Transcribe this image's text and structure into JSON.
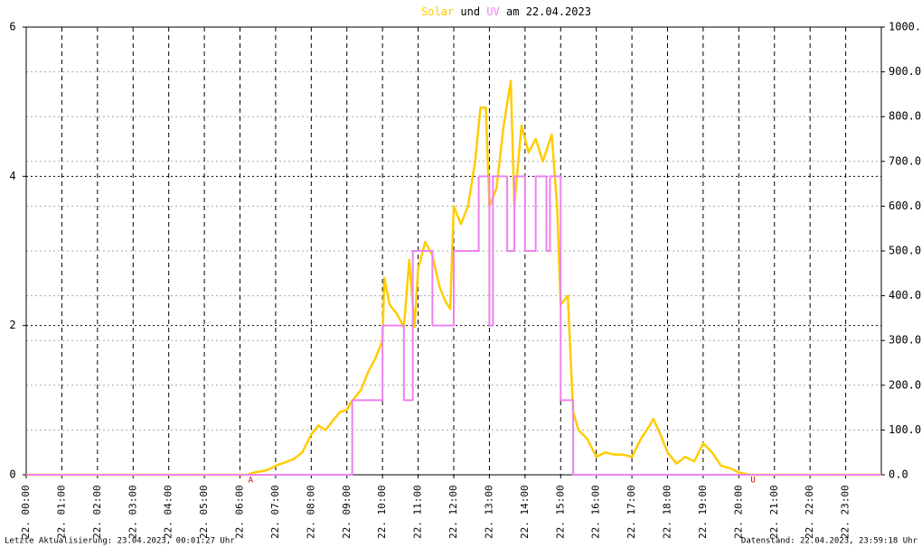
{
  "chart_data": {
    "type": "line",
    "title_join": "und",
    "title_suffix": "am 22.04.2023",
    "xlim": [
      0,
      24
    ],
    "xticks": [
      {
        "value": 0,
        "label": "22. 00:00"
      },
      {
        "value": 1,
        "label": "22. 01:00"
      },
      {
        "value": 2,
        "label": "22. 02:00"
      },
      {
        "value": 3,
        "label": "22. 03:00"
      },
      {
        "value": 4,
        "label": "22. 04:00"
      },
      {
        "value": 5,
        "label": "22. 05:00"
      },
      {
        "value": 6,
        "label": "22. 06:00"
      },
      {
        "value": 7,
        "label": "22. 07:00"
      },
      {
        "value": 8,
        "label": "22. 08:00"
      },
      {
        "value": 9,
        "label": "22. 09:00"
      },
      {
        "value": 10,
        "label": "22. 10:00"
      },
      {
        "value": 11,
        "label": "22. 11:00"
      },
      {
        "value": 12,
        "label": "22. 12:00"
      },
      {
        "value": 13,
        "label": "22. 13:00"
      },
      {
        "value": 14,
        "label": "22. 14:00"
      },
      {
        "value": 15,
        "label": "22. 15:00"
      },
      {
        "value": 16,
        "label": "22. 16:00"
      },
      {
        "value": 17,
        "label": "22. 17:00"
      },
      {
        "value": 18,
        "label": "22. 18:00"
      },
      {
        "value": 19,
        "label": "22. 19:00"
      },
      {
        "value": 20,
        "label": "22. 20:00"
      },
      {
        "value": 21,
        "label": "22. 21:00"
      },
      {
        "value": 22,
        "label": "22. 22:00"
      },
      {
        "value": 23,
        "label": "22. 23:00"
      }
    ],
    "ylim": [
      0,
      6
    ],
    "yticks": [
      0,
      2,
      4,
      6
    ],
    "y2lim": [
      0,
      1000
    ],
    "y2ticks": [
      {
        "value": 0,
        "label": "0.0"
      },
      {
        "value": 100,
        "label": "100.0"
      },
      {
        "value": 200,
        "label": "200.0"
      },
      {
        "value": 300,
        "label": "300.0"
      },
      {
        "value": 400,
        "label": "400.0"
      },
      {
        "value": 500,
        "label": "500.0"
      },
      {
        "value": 600,
        "label": "600.0"
      },
      {
        "value": 700,
        "label": "700.0"
      },
      {
        "value": 800,
        "label": "800.0"
      },
      {
        "value": 900,
        "label": "900.0"
      },
      {
        "value": 1000,
        "label": "1000.0"
      }
    ],
    "grid": true,
    "series": [
      {
        "name": "Solar",
        "color": "#ffcc00",
        "axis": "y2",
        "x": [
          0,
          6.2,
          6.4,
          6.75,
          7.0,
          7.5,
          7.75,
          8.0,
          8.2,
          8.4,
          8.6,
          8.8,
          9.0,
          9.1,
          9.2,
          9.4,
          9.6,
          9.8,
          10.0,
          10.05,
          10.2,
          10.4,
          10.6,
          10.75,
          10.9,
          11.0,
          11.2,
          11.4,
          11.6,
          11.75,
          11.9,
          12.0,
          12.2,
          12.4,
          12.6,
          12.75,
          12.9,
          13.0,
          13.2,
          13.4,
          13.6,
          13.7,
          13.9,
          14.1,
          14.3,
          14.5,
          14.75,
          14.9,
          15.0,
          15.2,
          15.35,
          15.5,
          15.75,
          16.0,
          16.25,
          16.5,
          16.75,
          17.0,
          17.25,
          17.5,
          17.6,
          17.8,
          18.0,
          18.25,
          18.5,
          18.75,
          19.0,
          19.25,
          19.5,
          19.75,
          20.0,
          20.3,
          24
        ],
        "values": [
          0,
          0,
          5,
          10,
          20,
          35,
          50,
          90,
          110,
          100,
          120,
          140,
          145,
          160,
          170,
          190,
          230,
          260,
          300,
          440,
          380,
          360,
          330,
          480,
          330,
          460,
          520,
          490,
          420,
          390,
          370,
          600,
          560,
          600,
          700,
          820,
          820,
          600,
          640,
          780,
          880,
          600,
          780,
          720,
          750,
          700,
          760,
          600,
          380,
          400,
          140,
          100,
          80,
          40,
          50,
          45,
          45,
          40,
          80,
          110,
          125,
          90,
          50,
          25,
          40,
          30,
          70,
          50,
          20,
          15,
          5,
          0,
          0
        ]
      },
      {
        "name": "UV",
        "color": "#ee82ee",
        "x": [
          0,
          9.15,
          9.15,
          10.0,
          10.0,
          10.6,
          10.6,
          10.85,
          10.85,
          11.4,
          11.4,
          12.0,
          12.0,
          12.7,
          12.7,
          13.0,
          13.0,
          13.1,
          13.1,
          13.5,
          13.5,
          13.7,
          13.7,
          14.0,
          14.0,
          14.3,
          14.3,
          14.6,
          14.6,
          14.7,
          14.7,
          15.0,
          15.0,
          15.35,
          15.35,
          24
        ],
        "values": [
          0,
          0,
          1,
          1,
          2,
          2,
          1,
          1,
          3,
          3,
          2,
          2,
          3,
          3,
          4,
          4,
          2,
          2,
          4,
          4,
          3,
          3,
          4,
          4,
          3,
          3,
          4,
          4,
          3,
          3,
          4,
          4,
          1,
          1,
          0,
          0
        ]
      }
    ],
    "annotations": [
      {
        "text": "A",
        "x": 6.3
      },
      {
        "text": "U",
        "x": 20.4
      }
    ],
    "annotation_color": "#cc0000",
    "footer_left": "Letzte Aktualisierung: 23.04.2023, 00:01:27 Uhr",
    "footer_right": "Datenstand: 22.04.2023, 23:59:18 Uhr"
  }
}
